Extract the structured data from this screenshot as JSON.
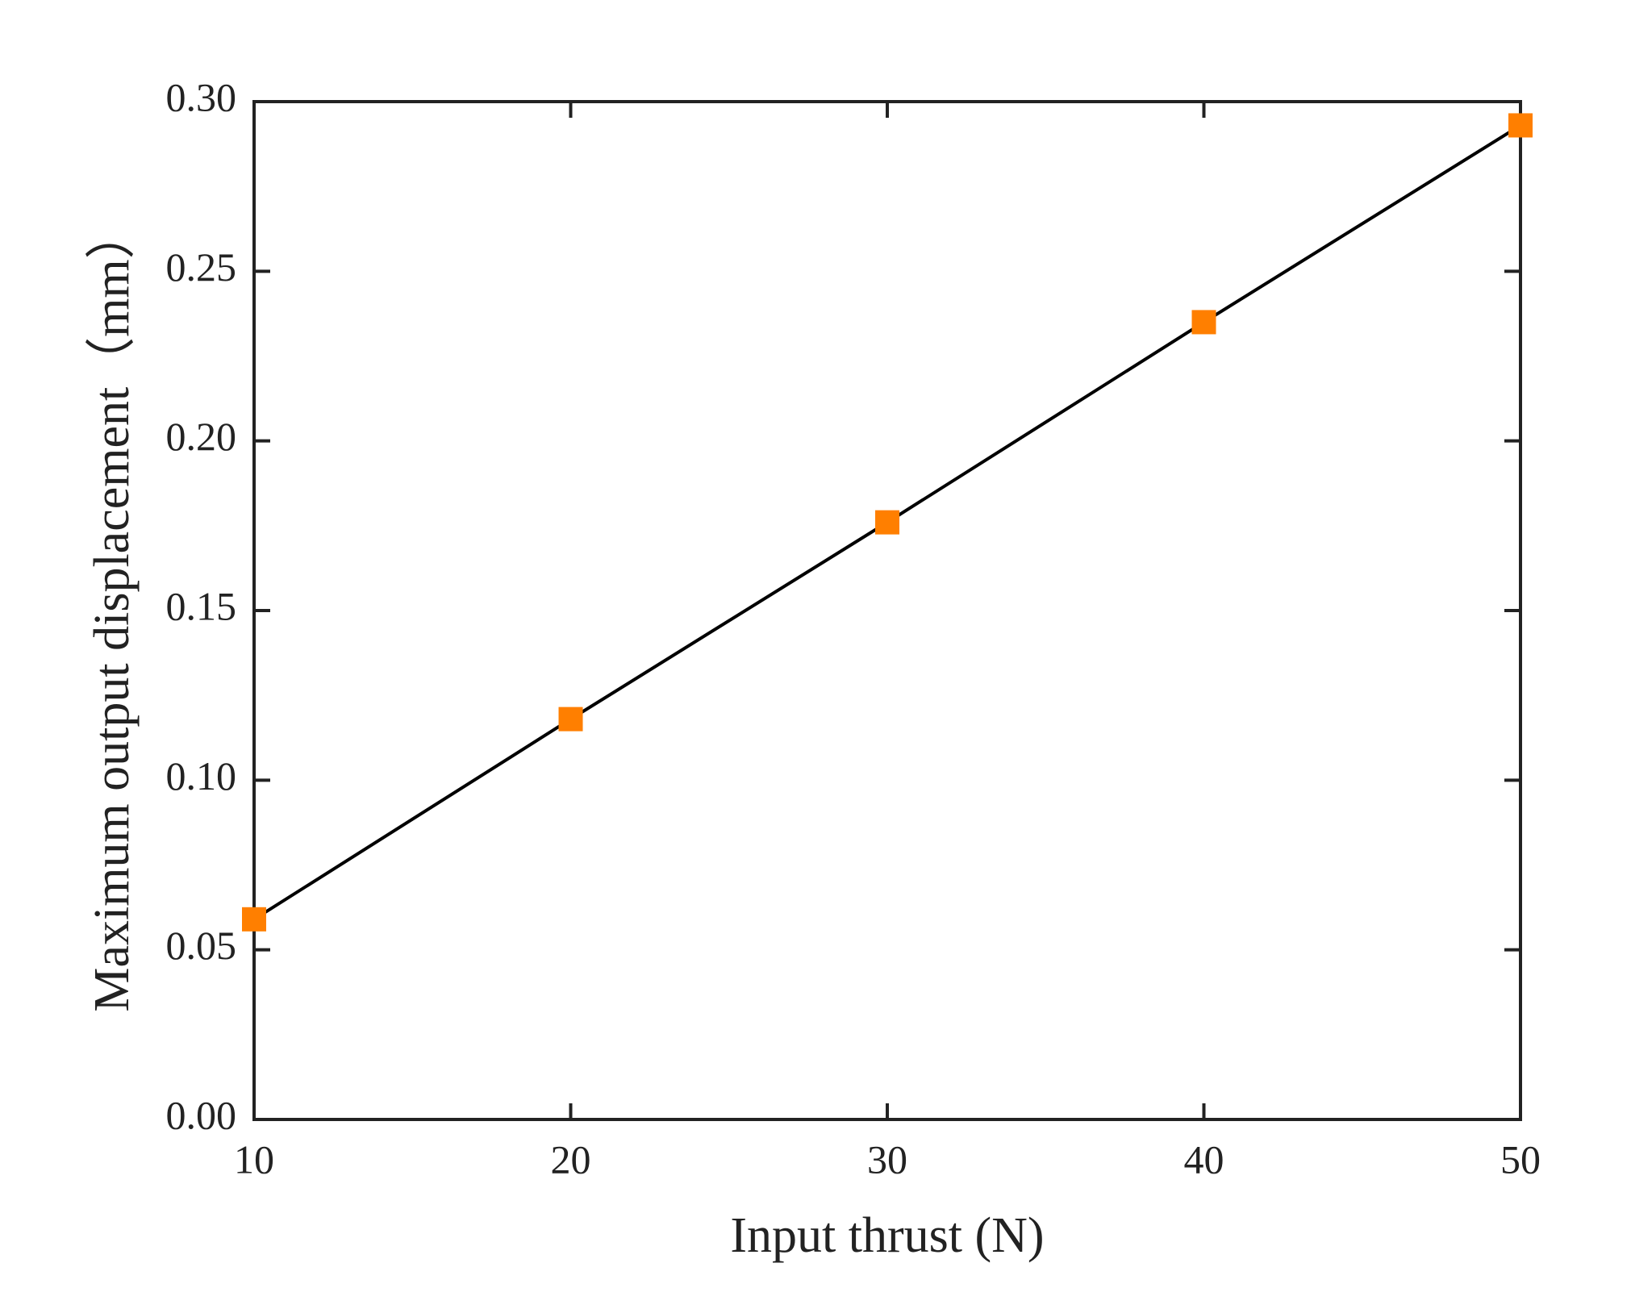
{
  "chart_data": {
    "type": "line",
    "x_label": "Input thrust (N)",
    "y_label": "Maximum output displacement（mm）",
    "x": [
      10,
      20,
      30,
      40,
      50
    ],
    "values": [
      0.059,
      0.118,
      0.176,
      0.235,
      0.293
    ],
    "line_color": "#000000",
    "marker_color": "#ff7f00",
    "xlim": [
      10,
      50
    ],
    "xticks": [
      10,
      20,
      30,
      40,
      50
    ],
    "ylim": [
      0,
      0.3
    ],
    "yticks": [
      {
        "value": 0,
        "label": "0.00"
      },
      {
        "value": 0.05,
        "label": "0.05"
      },
      {
        "value": 0.1,
        "label": "0.10"
      },
      {
        "value": 0.15,
        "label": "0.15"
      },
      {
        "value": 0.2,
        "label": "0.20"
      },
      {
        "value": 0.25,
        "label": "0.25"
      },
      {
        "value": 0.3,
        "label": "0.30"
      }
    ]
  }
}
